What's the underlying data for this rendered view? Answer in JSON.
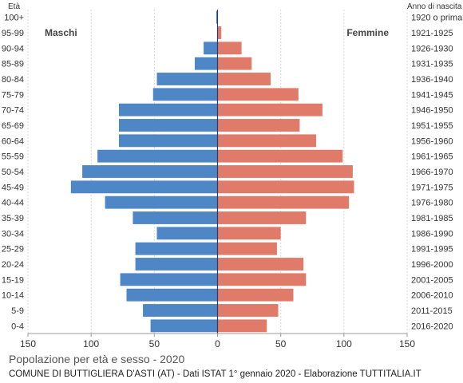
{
  "chart_data": {
    "type": "bar",
    "orientation": "horizontal",
    "title": "Popolazione per età e sesso - 2020",
    "subtitle": "COMUNE DI BUTTIGLIERA D'ASTI (AT) - Dati ISTAT 1° gennaio 2020 - Elaborazione TUTTITALIA.IT",
    "y_left_label": "Età",
    "y_right_label": "Anno di nascita",
    "xlim": [
      -150,
      150
    ],
    "x_ticks": [
      150,
      100,
      50,
      0,
      50,
      100,
      150
    ],
    "grid": true,
    "age_groups": [
      "100+",
      "95-99",
      "90-94",
      "85-89",
      "80-84",
      "75-79",
      "70-74",
      "65-69",
      "60-64",
      "55-59",
      "50-54",
      "45-49",
      "40-44",
      "35-39",
      "30-34",
      "25-29",
      "20-24",
      "15-19",
      "10-14",
      "5-9",
      "0-4"
    ],
    "birth_years": [
      "1920 o prima",
      "1921-1925",
      "1926-1930",
      "1931-1935",
      "1936-1940",
      "1941-1945",
      "1946-1950",
      "1951-1955",
      "1956-1960",
      "1961-1965",
      "1966-1970",
      "1971-1975",
      "1976-1980",
      "1981-1985",
      "1986-1990",
      "1991-1995",
      "1996-2000",
      "2001-2005",
      "2006-2010",
      "2011-2015",
      "2016-2020"
    ],
    "series": [
      {
        "name": "Maschi",
        "color": "#4f86c6",
        "values": [
          1,
          0,
          11,
          18,
          48,
          51,
          78,
          78,
          78,
          95,
          107,
          116,
          89,
          67,
          48,
          65,
          65,
          77,
          72,
          59,
          53
        ]
      },
      {
        "name": "Femmine",
        "color": "#e07b69",
        "values": [
          0,
          3,
          19,
          27,
          42,
          64,
          83,
          65,
          78,
          99,
          107,
          108,
          104,
          70,
          50,
          47,
          68,
          70,
          60,
          48,
          39
        ]
      }
    ]
  }
}
